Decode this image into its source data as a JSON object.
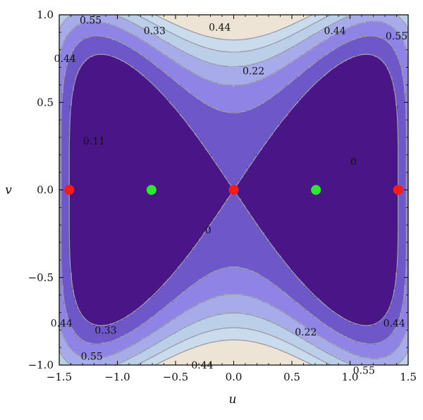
{
  "chart_data": {
    "type": "contour",
    "title": "",
    "xlabel": "u",
    "ylabel": "v",
    "xlim": [
      -1.5,
      1.5
    ],
    "ylim": [
      -1.0,
      1.0
    ],
    "x_ticks": [
      "-1.5",
      "-1.0",
      "-0.5",
      "0.0",
      "0.5",
      "1.0",
      "1.5"
    ],
    "x_tick_values": [
      -1.5,
      -1.0,
      -0.5,
      0.0,
      0.5,
      1.0,
      1.5
    ],
    "y_ticks": [
      "1.0",
      "0.5",
      "0.0",
      "-0.5",
      "-1.0"
    ],
    "y_tick_values": [
      1.0,
      0.5,
      0.0,
      -0.5,
      -1.0
    ],
    "contour_levels": [
      0,
      0.11,
      0.22,
      0.33,
      0.44,
      0.55
    ],
    "fill_colors": [
      "#4a1586",
      "#6e57c9",
      "#8f84e6",
      "#a7abea",
      "#bccfe8",
      "#c9dbec",
      "#ede4d6"
    ],
    "contour_line_color": "#9a9aa8",
    "contour_labels": [
      {
        "text": "0.55",
        "u": -1.23,
        "v": 0.97
      },
      {
        "text": "0.33",
        "u": -0.68,
        "v": 0.91
      },
      {
        "text": "0.44",
        "u": -0.12,
        "v": 0.93
      },
      {
        "text": "0.44",
        "u": 0.87,
        "v": 0.91
      },
      {
        "text": "0.55",
        "u": 1.4,
        "v": 0.88
      },
      {
        "text": "0.44",
        "u": -1.45,
        "v": 0.75
      },
      {
        "text": "0.22",
        "u": 0.17,
        "v": 0.68
      },
      {
        "text": "0.11",
        "u": -1.2,
        "v": 0.28
      },
      {
        "text": "0",
        "u": 1.03,
        "v": 0.16
      },
      {
        "text": "0",
        "u": -0.22,
        "v": -0.23
      },
      {
        "text": "0.44",
        "u": -1.48,
        "v": -0.76
      },
      {
        "text": "0.33",
        "u": -1.1,
        "v": -0.8
      },
      {
        "text": "0.22",
        "u": 0.62,
        "v": -0.81
      },
      {
        "text": "0.44",
        "u": 1.38,
        "v": -0.76
      },
      {
        "text": "0.55",
        "u": -1.22,
        "v": -0.95
      },
      {
        "text": "0.44",
        "u": -0.27,
        "v": -1.0
      },
      {
        "text": "0.55",
        "u": 1.12,
        "v": -1.03
      }
    ],
    "points": [
      {
        "u": -1.414,
        "v": 0.0,
        "color": "#ff1a1a"
      },
      {
        "u": -0.707,
        "v": 0.0,
        "color": "#2ee82e"
      },
      {
        "u": 0.0,
        "v": 0.0,
        "color": "#ff1a1a"
      },
      {
        "u": 0.707,
        "v": 0.0,
        "color": "#2ee82e"
      },
      {
        "u": 1.414,
        "v": 0.0,
        "color": "#ff1a1a"
      }
    ],
    "grid": false,
    "legend": "none"
  }
}
